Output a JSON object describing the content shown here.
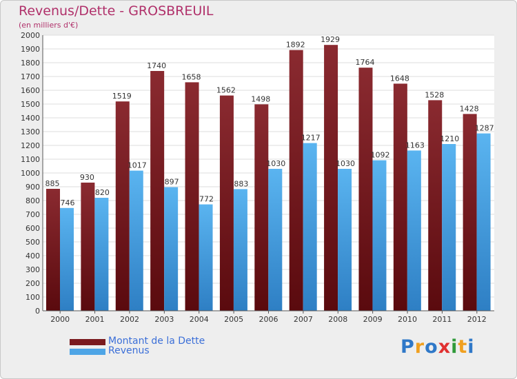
{
  "title": "Revenus/Dette - GROSBREUIL",
  "subtitle": "(en milliers d'€)",
  "logo": {
    "text": "Proxiti",
    "letters": [
      {
        "ch": "P",
        "color": "#2f78c8"
      },
      {
        "ch": "r",
        "color": "#f0a020"
      },
      {
        "ch": "o",
        "color": "#2f78c8"
      },
      {
        "ch": "x",
        "color": "#e03030"
      },
      {
        "ch": "i",
        "color": "#2f9a3a"
      },
      {
        "ch": "t",
        "color": "#f0a020"
      },
      {
        "ch": "i",
        "color": "#2f78c8"
      }
    ]
  },
  "chart_data": {
    "type": "bar",
    "title": "Revenus/Dette - GROSBREUIL",
    "subtitle": "(en milliers d'€)",
    "categories": [
      "2000",
      "2001",
      "2002",
      "2003",
      "2004",
      "2005",
      "2006",
      "2007",
      "2008",
      "2009",
      "2010",
      "2011",
      "2012"
    ],
    "series": [
      {
        "name": "Montant de la Dette",
        "color": "#7a1a1e",
        "values": [
          885,
          930,
          1519,
          1740,
          1658,
          1562,
          1498,
          1892,
          1929,
          1764,
          1648,
          1528,
          1428
        ]
      },
      {
        "name": "Revenus",
        "color": "#4ea5e6",
        "values": [
          746,
          820,
          1017,
          897,
          772,
          883,
          1030,
          1217,
          1030,
          1092,
          1163,
          1210,
          1287
        ]
      }
    ],
    "ylim": [
      0,
      2000
    ],
    "ytick_step": 100,
    "grid": true,
    "legend": "bottom-left",
    "data_labels": true
  }
}
